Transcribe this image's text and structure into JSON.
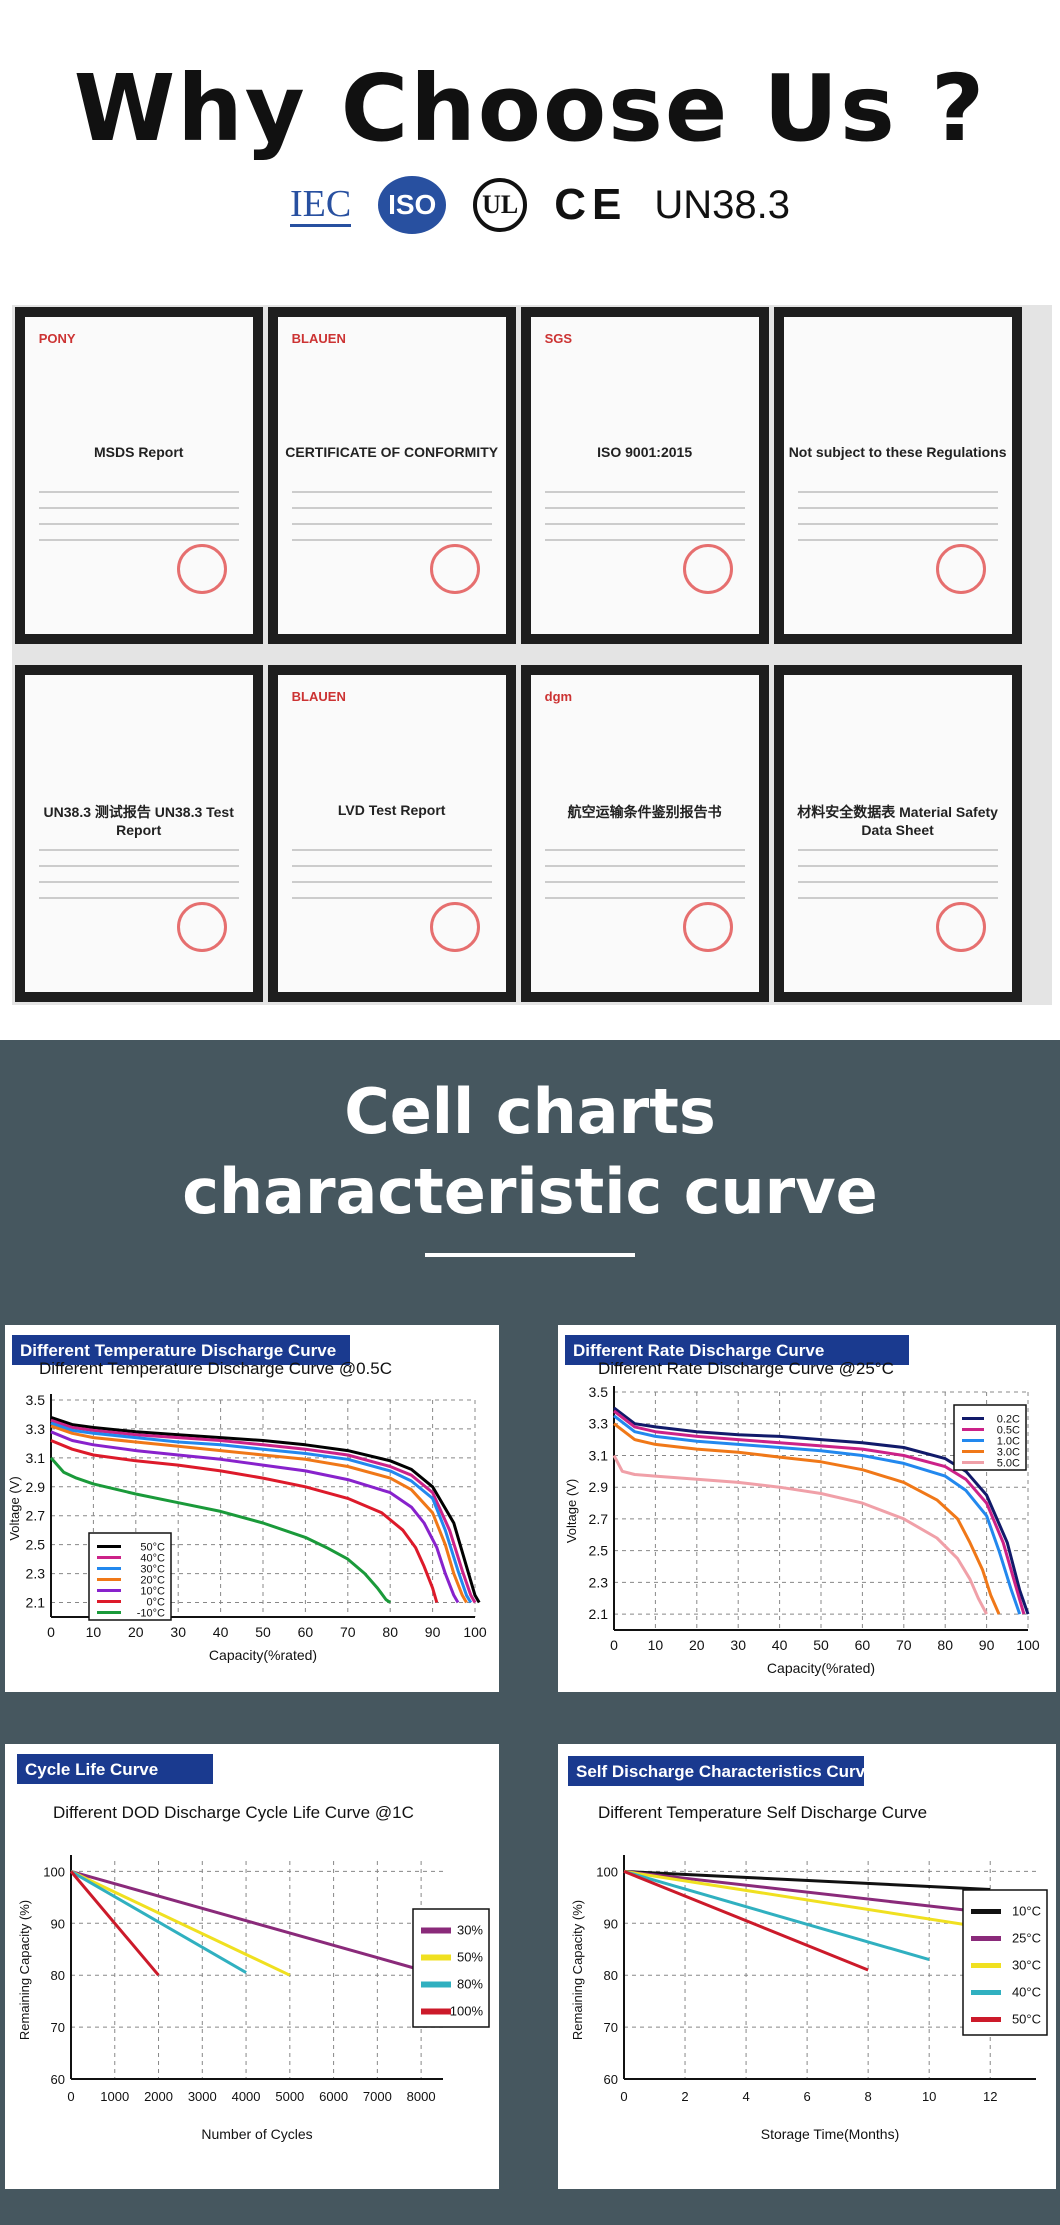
{
  "header": {
    "title": "Why Choose Us ?",
    "logos": [
      "IEC",
      "ISO",
      "UL",
      "CE",
      "UN38.3"
    ]
  },
  "certificates": [
    {
      "label": "MSDS Report",
      "brand": "PONY"
    },
    {
      "label": "CERTIFICATE OF CONFORMITY",
      "brand": "BLAUEN"
    },
    {
      "label": "ISO 9001:2015",
      "brand": "SGS"
    },
    {
      "label": "Not subject to these Regulations",
      "brand": ""
    },
    {
      "label": "UN38.3 测试报告 UN38.3 Test Report",
      "brand": ""
    },
    {
      "label": "LVD Test Report",
      "brand": "BLAUEN"
    },
    {
      "label": "航空运输条件鉴别报告书",
      "brand": "dgm"
    },
    {
      "label": "材料安全数据表 Material Safety Data Sheet",
      "brand": ""
    }
  ],
  "section": {
    "title_line1": "Cell charts",
    "title_line2": "characteristic curve"
  },
  "accent": "#1a3a8f",
  "background_dark": "#46575f",
  "chart_data": [
    {
      "type": "line",
      "banner": "Different Temperature Discharge Curve",
      "title": "Different Temperature Discharge Curve @0.5C",
      "xlabel": "Capacity(%rated)",
      "ylabel": "Voltage (V)",
      "xlim": [
        0,
        100
      ],
      "ylim": [
        2.0,
        3.5
      ],
      "xticks": [
        "0",
        "10",
        "20",
        "30",
        "40",
        "50",
        "60",
        "70",
        "80",
        "90",
        "100"
      ],
      "yticks": [
        "2.1",
        "2.3",
        "2.5",
        "2.7",
        "2.9",
        "3.1",
        "3.3",
        "3.5"
      ],
      "series": [
        {
          "name": "50°C",
          "color": "#000000",
          "x": [
            0,
            5,
            10,
            20,
            30,
            40,
            50,
            60,
            70,
            80,
            85,
            90,
            95,
            98,
            100,
            101
          ],
          "y": [
            3.38,
            3.33,
            3.31,
            3.28,
            3.26,
            3.24,
            3.22,
            3.19,
            3.15,
            3.08,
            3.02,
            2.9,
            2.65,
            2.35,
            2.15,
            2.1
          ]
        },
        {
          "name": "40°C",
          "color": "#cc2288",
          "x": [
            0,
            5,
            10,
            20,
            30,
            40,
            50,
            60,
            70,
            80,
            85,
            90,
            94,
            97,
            99,
            100
          ],
          "y": [
            3.36,
            3.31,
            3.29,
            3.26,
            3.24,
            3.22,
            3.19,
            3.16,
            3.12,
            3.04,
            2.98,
            2.86,
            2.6,
            2.32,
            2.15,
            2.1
          ]
        },
        {
          "name": "30°C",
          "color": "#2288ee",
          "x": [
            0,
            5,
            10,
            20,
            30,
            40,
            50,
            60,
            70,
            80,
            85,
            90,
            93,
            96,
            98,
            99
          ],
          "y": [
            3.34,
            3.29,
            3.27,
            3.24,
            3.21,
            3.19,
            3.16,
            3.13,
            3.09,
            3.01,
            2.94,
            2.82,
            2.6,
            2.32,
            2.15,
            2.1
          ]
        },
        {
          "name": "20°C",
          "color": "#f07818",
          "x": [
            0,
            5,
            10,
            20,
            30,
            40,
            50,
            60,
            70,
            80,
            85,
            90,
            93,
            95,
            97,
            98
          ],
          "y": [
            3.32,
            3.27,
            3.24,
            3.21,
            3.18,
            3.15,
            3.12,
            3.09,
            3.04,
            2.96,
            2.88,
            2.72,
            2.5,
            2.3,
            2.15,
            2.1
          ]
        },
        {
          "name": "10°C",
          "color": "#8822cc",
          "x": [
            0,
            5,
            10,
            20,
            30,
            40,
            50,
            60,
            70,
            80,
            85,
            88,
            91,
            93,
            95,
            96
          ],
          "y": [
            3.28,
            3.22,
            3.19,
            3.15,
            3.12,
            3.09,
            3.05,
            3.01,
            2.95,
            2.86,
            2.76,
            2.65,
            2.48,
            2.3,
            2.15,
            2.1
          ]
        },
        {
          "name": "0°C",
          "color": "#dd1a2a",
          "x": [
            0,
            5,
            10,
            20,
            30,
            40,
            50,
            60,
            70,
            78,
            83,
            86,
            88,
            90,
            91
          ],
          "y": [
            3.22,
            3.16,
            3.12,
            3.08,
            3.05,
            3.01,
            2.96,
            2.9,
            2.82,
            2.72,
            2.6,
            2.48,
            2.35,
            2.2,
            2.1
          ]
        },
        {
          "name": "-10°C",
          "color": "#1a9a3a",
          "x": [
            0,
            3,
            6,
            10,
            20,
            30,
            40,
            50,
            60,
            65,
            70,
            74,
            77,
            79,
            80
          ],
          "y": [
            3.1,
            3.0,
            2.96,
            2.92,
            2.85,
            2.79,
            2.73,
            2.65,
            2.55,
            2.48,
            2.4,
            2.3,
            2.2,
            2.12,
            2.1
          ]
        }
      ],
      "legend": "center-left",
      "grid": true
    },
    {
      "type": "line",
      "banner": "Different Rate Discharge Curve",
      "title": "Different Rate Discharge Curve @25°C",
      "xlabel": "Capacity(%rated)",
      "ylabel": "Voltage (V)",
      "xlim": [
        0,
        100
      ],
      "ylim": [
        2.0,
        3.5
      ],
      "xticks": [
        "0",
        "10",
        "20",
        "30",
        "40",
        "50",
        "60",
        "70",
        "80",
        "90",
        "100"
      ],
      "yticks": [
        "2.1",
        "2.3",
        "2.5",
        "2.7",
        "2.9",
        "3.1",
        "3.3",
        "3.5"
      ],
      "series": [
        {
          "name": "0.2C",
          "color": "#111a6a",
          "x": [
            0,
            5,
            10,
            20,
            30,
            40,
            50,
            60,
            70,
            80,
            85,
            90,
            95,
            98,
            100
          ],
          "y": [
            3.4,
            3.3,
            3.28,
            3.25,
            3.23,
            3.22,
            3.2,
            3.18,
            3.15,
            3.08,
            3.0,
            2.85,
            2.55,
            2.25,
            2.1
          ]
        },
        {
          "name": "0.5C",
          "color": "#cc2288",
          "x": [
            0,
            5,
            10,
            20,
            30,
            40,
            50,
            60,
            70,
            80,
            85,
            90,
            94,
            97,
            99
          ],
          "y": [
            3.38,
            3.28,
            3.25,
            3.22,
            3.2,
            3.18,
            3.16,
            3.14,
            3.1,
            3.03,
            2.95,
            2.8,
            2.55,
            2.28,
            2.1
          ]
        },
        {
          "name": "1.0C",
          "color": "#2288ee",
          "x": [
            0,
            5,
            10,
            20,
            30,
            40,
            50,
            60,
            70,
            80,
            85,
            90,
            93,
            96,
            98
          ],
          "y": [
            3.35,
            3.25,
            3.22,
            3.19,
            3.17,
            3.15,
            3.13,
            3.1,
            3.05,
            2.97,
            2.88,
            2.72,
            2.5,
            2.25,
            2.1
          ]
        },
        {
          "name": "3.0C",
          "color": "#f07818",
          "x": [
            0,
            5,
            10,
            20,
            30,
            40,
            50,
            60,
            70,
            78,
            83,
            86,
            89,
            91,
            93
          ],
          "y": [
            3.3,
            3.2,
            3.17,
            3.14,
            3.12,
            3.09,
            3.06,
            3.01,
            2.93,
            2.82,
            2.7,
            2.55,
            2.38,
            2.22,
            2.1
          ]
        },
        {
          "name": "5.0C",
          "color": "#f0a0a8",
          "x": [
            0,
            2,
            5,
            10,
            20,
            30,
            40,
            50,
            60,
            70,
            78,
            83,
            86,
            88,
            90
          ],
          "y": [
            3.1,
            3.0,
            2.98,
            2.97,
            2.95,
            2.93,
            2.9,
            2.86,
            2.8,
            2.7,
            2.58,
            2.45,
            2.32,
            2.2,
            2.1
          ]
        }
      ],
      "legend": "top-right",
      "grid": true
    },
    {
      "type": "line",
      "banner": "Cycle Life Curve",
      "title": "Different DOD Discharge Cycle Life Curve @1C",
      "xlabel": "Number of Cycles",
      "ylabel": "Remaining Capacity (%)",
      "xlim": [
        0,
        8500
      ],
      "ylim": [
        60,
        102
      ],
      "xticks": [
        "0",
        "1000",
        "2000",
        "3000",
        "4000",
        "5000",
        "6000",
        "7000",
        "8000"
      ],
      "yticks": [
        "60",
        "70",
        "80",
        "90",
        "100"
      ],
      "series": [
        {
          "name": "30%",
          "color": "#8a2a7a",
          "x": [
            0,
            8000
          ],
          "y": [
            100,
            81
          ]
        },
        {
          "name": "50%",
          "color": "#f0e020",
          "x": [
            0,
            5000
          ],
          "y": [
            100,
            80
          ]
        },
        {
          "name": "80%",
          "color": "#30b0c0",
          "x": [
            0,
            4000
          ],
          "y": [
            100,
            80.5
          ]
        },
        {
          "name": "100%",
          "color": "#cc1a2a",
          "x": [
            0,
            2000
          ],
          "y": [
            100,
            80
          ]
        }
      ],
      "legend": "right",
      "grid": true
    },
    {
      "type": "line",
      "banner": "Self Discharge Characteristics Curve",
      "title": "Different Temperature Self Discharge Curve",
      "xlabel": "Storage Time(Months)",
      "ylabel": "Remaining Capacity (%)",
      "xlim": [
        0,
        13.5
      ],
      "ylim": [
        60,
        102
      ],
      "xticks": [
        "0",
        "2",
        "4",
        "6",
        "8",
        "10",
        "12"
      ],
      "yticks": [
        "60",
        "70",
        "80",
        "90",
        "100"
      ],
      "series": [
        {
          "name": "10°C",
          "color": "#111111",
          "x": [
            0,
            12
          ],
          "y": [
            100,
            96.5
          ]
        },
        {
          "name": "25°C",
          "color": "#8a2a7a",
          "x": [
            0,
            12
          ],
          "y": [
            100,
            92
          ]
        },
        {
          "name": "30°C",
          "color": "#f0e020",
          "x": [
            0,
            12
          ],
          "y": [
            100,
            89
          ]
        },
        {
          "name": "40°C",
          "color": "#30b0c0",
          "x": [
            0,
            10
          ],
          "y": [
            100,
            83
          ]
        },
        {
          "name": "50°C",
          "color": "#cc1a2a",
          "x": [
            0,
            8
          ],
          "y": [
            100,
            81
          ]
        }
      ],
      "legend": "right",
      "grid": true
    }
  ]
}
